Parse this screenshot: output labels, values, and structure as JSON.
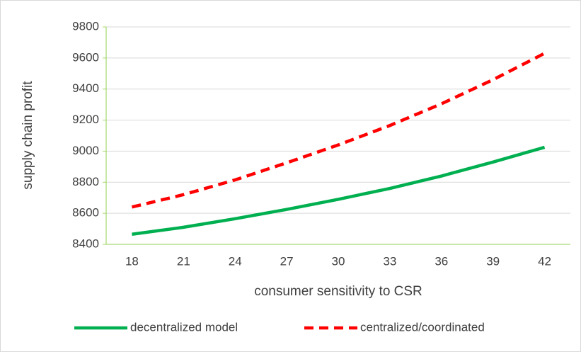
{
  "chart_data": {
    "type": "line",
    "x_label": "consumer sensitivity to CSR",
    "y_label": "supply chain profit",
    "categories": [
      "18",
      "21",
      "24",
      "27",
      "30",
      "33",
      "36",
      "39",
      "42"
    ],
    "series": [
      {
        "name": "decentralized model",
        "color": "#00b050",
        "dash": "solid",
        "values": [
          8465,
          8510,
          8565,
          8625,
          8690,
          8760,
          8840,
          8930,
          9025
        ]
      },
      {
        "name": "centralized/coordinated",
        "color": "#ff0000",
        "dash": "dashed",
        "values": [
          8640,
          8720,
          8815,
          8925,
          9040,
          9165,
          9305,
          9460,
          9630
        ]
      }
    ],
    "ylim": [
      8400,
      9800
    ],
    "yticks": [
      8400,
      8600,
      8800,
      9000,
      9200,
      9400,
      9600,
      9800
    ],
    "grid": true,
    "legend": "bottom"
  }
}
